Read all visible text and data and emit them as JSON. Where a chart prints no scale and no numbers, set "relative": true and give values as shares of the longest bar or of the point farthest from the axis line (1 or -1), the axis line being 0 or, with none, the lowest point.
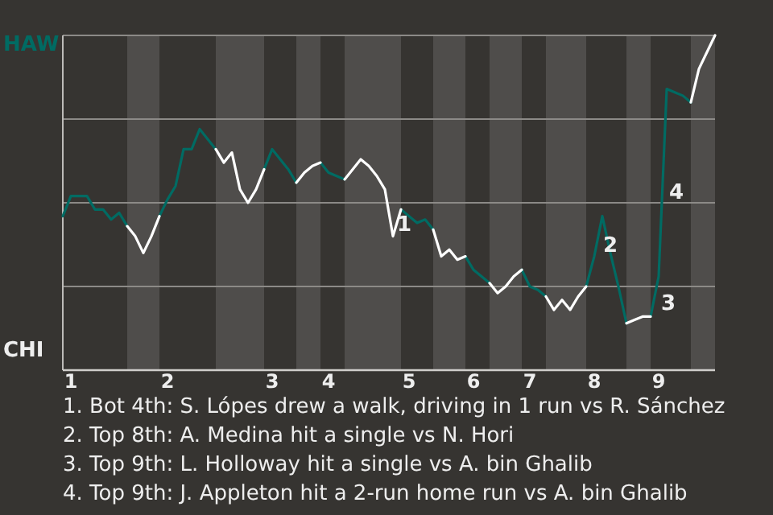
{
  "chart_data": {
    "type": "line",
    "relative": true,
    "marker": "none",
    "line_style": "solid",
    "categories": [
      null,
      "1",
      null,
      null,
      null,
      null,
      null,
      null,
      null,
      null,
      null,
      null,
      null,
      "2",
      null,
      null,
      null,
      null,
      null,
      null,
      null,
      null,
      null,
      null,
      null,
      null,
      "3",
      null,
      null,
      null,
      null,
      null,
      null,
      "4",
      null,
      null,
      null,
      null,
      null,
      null,
      null,
      null,
      null,
      "5",
      null,
      null,
      null,
      null,
      null,
      null,
      null,
      "6",
      null,
      null,
      null,
      null,
      null,
      null,
      "7",
      null,
      null,
      null,
      null,
      null,
      null,
      null,
      "8",
      null,
      null,
      null,
      null,
      null,
      null,
      null,
      "9",
      null,
      null,
      null,
      null,
      null,
      null,
      null
    ],
    "series": [
      {
        "color": "#006b63",
        "values": [
          0.46,
          0.52,
          0.52,
          0.52,
          0.48,
          0.48,
          0.45,
          0.47,
          0.43,
          null,
          null,
          null,
          0.46,
          0.51,
          0.55,
          0.66,
          0.66,
          0.72,
          0.69,
          0.66,
          null,
          null,
          null,
          null,
          null,
          0.6,
          0.66,
          0.63,
          0.6,
          0.56,
          null,
          null,
          0.62,
          0.59,
          0.58,
          0.57,
          null,
          null,
          null,
          null,
          null,
          null,
          0.48,
          0.46,
          0.44,
          0.45,
          0.42,
          null,
          null,
          null,
          0.34,
          0.3,
          0.28,
          0.26,
          null,
          null,
          null,
          0.3,
          0.25,
          0.24,
          0.22,
          null,
          null,
          null,
          null,
          0.25,
          0.34,
          0.46,
          0.35,
          0.25,
          0.14,
          null,
          null,
          0.16,
          0.28,
          0.84,
          0.83,
          0.82,
          0.8,
          null,
          null,
          null
        ]
      },
      {
        "color": "#ffffff",
        "values": [
          null,
          null,
          null,
          null,
          null,
          null,
          null,
          null,
          0.43,
          0.4,
          0.35,
          0.4,
          0.46,
          null,
          null,
          null,
          null,
          null,
          null,
          0.66,
          0.62,
          0.65,
          0.54,
          0.5,
          0.54,
          0.6,
          null,
          null,
          null,
          0.56,
          0.59,
          0.61,
          0.62,
          null,
          null,
          0.57,
          0.6,
          0.63,
          0.61,
          0.58,
          0.54,
          0.4,
          0.48,
          null,
          null,
          null,
          0.42,
          0.34,
          0.36,
          0.33,
          0.34,
          null,
          null,
          0.26,
          0.23,
          0.25,
          0.28,
          0.3,
          null,
          null,
          0.22,
          0.18,
          0.21,
          0.18,
          0.22,
          0.25,
          null,
          null,
          null,
          null,
          0.14,
          0.15,
          0.16,
          0.16,
          null,
          null,
          null,
          null,
          0.8,
          0.9,
          0.95,
          1.0
        ]
      }
    ],
    "annotations": [
      "HAW",
      "CHI",
      "1",
      "2",
      "3",
      "4",
      "1. Bot 4th: S. Lópes drew a walk, driving in 1 run vs R. Sánchez",
      "2. Top 8th: A. Medina hit a single vs N. Hori",
      "3. Top 9th: L. Holloway hit a single vs A. bin Ghalib",
      "4. Top 9th: J. Appleton hit a 2-run home run vs A. bin Ghalib"
    ]
  }
}
